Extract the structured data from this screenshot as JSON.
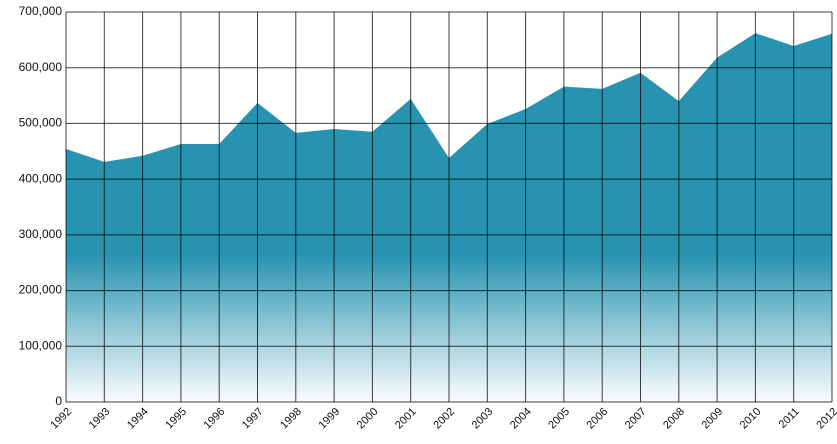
{
  "chart_data": {
    "type": "area",
    "color": "#2793b1",
    "categories": [
      "1992",
      "1993",
      "1994",
      "1995",
      "1996",
      "1997",
      "1998",
      "1999",
      "2000",
      "2001",
      "2002",
      "2003",
      "2004",
      "2005",
      "2006",
      "2007",
      "2008",
      "2009",
      "2010",
      "2011",
      "2012"
    ],
    "values": [
      454000,
      431000,
      442000,
      463000,
      463000,
      537000,
      483000,
      490000,
      485000,
      544000,
      438000,
      499000,
      526000,
      566000,
      562000,
      591000,
      540000,
      618000,
      662000,
      639000,
      661000
    ],
    "ylim": [
      0,
      700000
    ],
    "yticks": [
      0,
      {
        "value": 100000,
        "label": "100,000"
      },
      {
        "value": 200000,
        "label": "200,000"
      },
      {
        "value": 300000,
        "label": "300,000"
      },
      {
        "value": 400000,
        "label": "400,000"
      },
      {
        "value": 500000,
        "label": "500,000"
      },
      {
        "value": 600000,
        "label": "600,000"
      },
      {
        "value": 700000,
        "label": "700,000"
      }
    ],
    "grid": true
  }
}
